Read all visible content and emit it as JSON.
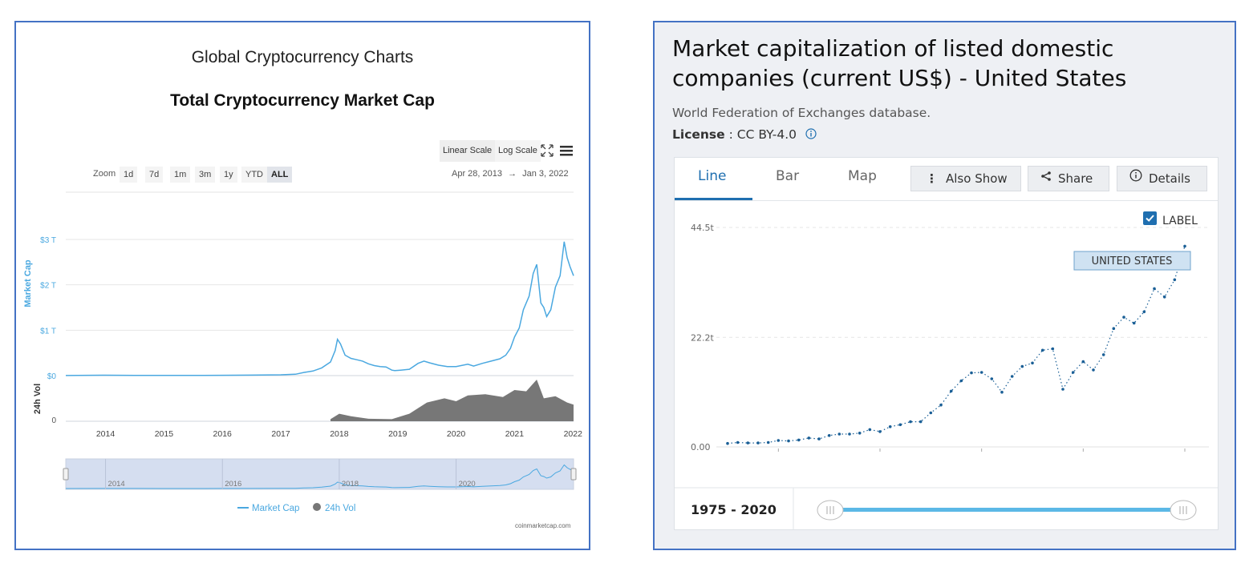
{
  "left": {
    "title": "Global Cryptocurrency Charts",
    "subtitle": "Total Cryptocurrency Market Cap",
    "scale_buttons": [
      "Linear Scale",
      "Log Scale"
    ],
    "zoom_label": "Zoom",
    "zoom_options": [
      "1d",
      "7d",
      "1m",
      "3m",
      "1y",
      "YTD",
      "ALL"
    ],
    "zoom_active": "ALL",
    "date_from": "Apr 28, 2013",
    "date_arrow": "→",
    "date_to": "Jan 3, 2022",
    "credit": "coinmarketcap.com",
    "colors": {
      "market_cap": "#4aa8e0",
      "volume": "#777777",
      "navigator": "#d5def0"
    }
  },
  "right": {
    "title": "Market capitalization of listed domestic companies (current US$) - United States",
    "source": "World Federation of Exchanges database.",
    "license_label": "License",
    "license_value": ": CC BY-4.0",
    "tabs": [
      "Line",
      "Bar",
      "Map"
    ],
    "active_tab": "Line",
    "buttons": {
      "also_show": "Also Show",
      "share": "Share",
      "details": "Details"
    },
    "label_toggle": "LABEL",
    "label_checked": true,
    "range_text": "1975 - 2020",
    "colors": {
      "accent": "#1f6fb0",
      "line": "#1a5f96",
      "slider": "#5bb8e6"
    }
  },
  "chart_data": [
    {
      "type": "line",
      "title": "Total Cryptocurrency Market Cap",
      "ylabel": "Market Cap",
      "y_ticks": [
        "$0",
        "$1 T",
        "$2 T",
        "$3 T"
      ],
      "ylim": [
        0,
        3
      ],
      "x_ticks": [
        "2014",
        "2015",
        "2016",
        "2017",
        "2018",
        "2019",
        "2020",
        "2021",
        "2022"
      ],
      "xlim": [
        2013.32,
        2022.01
      ],
      "series": [
        {
          "name": "Market Cap",
          "unit": "trillion USD",
          "x": [
            2013.32,
            2014.0,
            2014.5,
            2015.0,
            2015.5,
            2016.0,
            2016.5,
            2017.0,
            2017.25,
            2017.4,
            2017.55,
            2017.7,
            2017.85,
            2017.93,
            2017.97,
            2018.02,
            2018.1,
            2018.2,
            2018.3,
            2018.4,
            2018.5,
            2018.6,
            2018.7,
            2018.8,
            2018.9,
            2018.95,
            2019.05,
            2019.2,
            2019.35,
            2019.45,
            2019.55,
            2019.7,
            2019.85,
            2020.0,
            2020.2,
            2020.3,
            2020.45,
            2020.6,
            2020.75,
            2020.85,
            2020.93,
            2021.0,
            2021.08,
            2021.15,
            2021.25,
            2021.32,
            2021.38,
            2021.45,
            2021.5,
            2021.55,
            2021.62,
            2021.7,
            2021.78,
            2021.85,
            2021.9,
            2021.95,
            2022.01
          ],
          "values": [
            0.002,
            0.008,
            0.006,
            0.004,
            0.003,
            0.007,
            0.011,
            0.018,
            0.03,
            0.07,
            0.1,
            0.17,
            0.3,
            0.55,
            0.8,
            0.7,
            0.45,
            0.38,
            0.35,
            0.32,
            0.26,
            0.22,
            0.2,
            0.19,
            0.12,
            0.11,
            0.12,
            0.14,
            0.27,
            0.32,
            0.28,
            0.23,
            0.2,
            0.2,
            0.25,
            0.21,
            0.27,
            0.32,
            0.37,
            0.45,
            0.6,
            0.85,
            1.05,
            1.45,
            1.75,
            2.25,
            2.45,
            1.6,
            1.5,
            1.3,
            1.45,
            1.95,
            2.2,
            2.95,
            2.6,
            2.4,
            2.2
          ]
        },
        {
          "name": "24h Vol",
          "ylabel": "24h Vol",
          "y_ticks": [
            "0"
          ],
          "note_start": 2017.85,
          "x": [
            2017.85,
            2018.0,
            2018.2,
            2018.5,
            2018.9,
            2019.2,
            2019.5,
            2019.8,
            2020.0,
            2020.2,
            2020.5,
            2020.8,
            2021.0,
            2021.2,
            2021.38,
            2021.5,
            2021.7,
            2021.9,
            2022.01
          ],
          "values": [
            0.05,
            0.18,
            0.12,
            0.06,
            0.05,
            0.18,
            0.45,
            0.55,
            0.48,
            0.62,
            0.65,
            0.58,
            0.75,
            0.72,
            1.0,
            0.55,
            0.6,
            0.45,
            0.4
          ]
        }
      ],
      "navigator_ticks": [
        "2014",
        "2016",
        "2018",
        "2020"
      ],
      "legend": [
        "Market Cap",
        "24h Vol"
      ],
      "legend_position": "bottom"
    },
    {
      "type": "line",
      "title": "Market capitalization of listed domestic companies (current US$) - United States",
      "y_ticks": [
        "0.00",
        "22.2t",
        "44.5t"
      ],
      "ylim": [
        0,
        44.5
      ],
      "xlim": [
        1975,
        2020
      ],
      "series": [
        {
          "name": "UNITED STATES",
          "unit": "trillion USD",
          "x": [
            1975,
            1976,
            1977,
            1978,
            1979,
            1980,
            1981,
            1982,
            1983,
            1984,
            1985,
            1986,
            1987,
            1988,
            1989,
            1990,
            1991,
            1992,
            1993,
            1994,
            1995,
            1996,
            1997,
            1998,
            1999,
            2000,
            2001,
            2002,
            2003,
            2004,
            2005,
            2006,
            2007,
            2008,
            2009,
            2010,
            2011,
            2012,
            2013,
            2014,
            2015,
            2016,
            2017,
            2018,
            2019,
            2020
          ],
          "values": [
            0.7,
            0.9,
            0.8,
            0.8,
            0.9,
            1.3,
            1.2,
            1.4,
            1.8,
            1.6,
            2.3,
            2.6,
            2.6,
            2.8,
            3.5,
            3.1,
            4.1,
            4.5,
            5.1,
            5.1,
            6.9,
            8.5,
            11.3,
            13.4,
            15.0,
            15.1,
            13.8,
            11.1,
            14.3,
            16.3,
            17.0,
            19.6,
            19.9,
            11.7,
            15.1,
            17.3,
            15.6,
            18.7,
            24.0,
            26.3,
            25.1,
            27.4,
            32.1,
            30.4,
            33.9,
            40.7
          ]
        }
      ],
      "grid": true
    }
  ]
}
